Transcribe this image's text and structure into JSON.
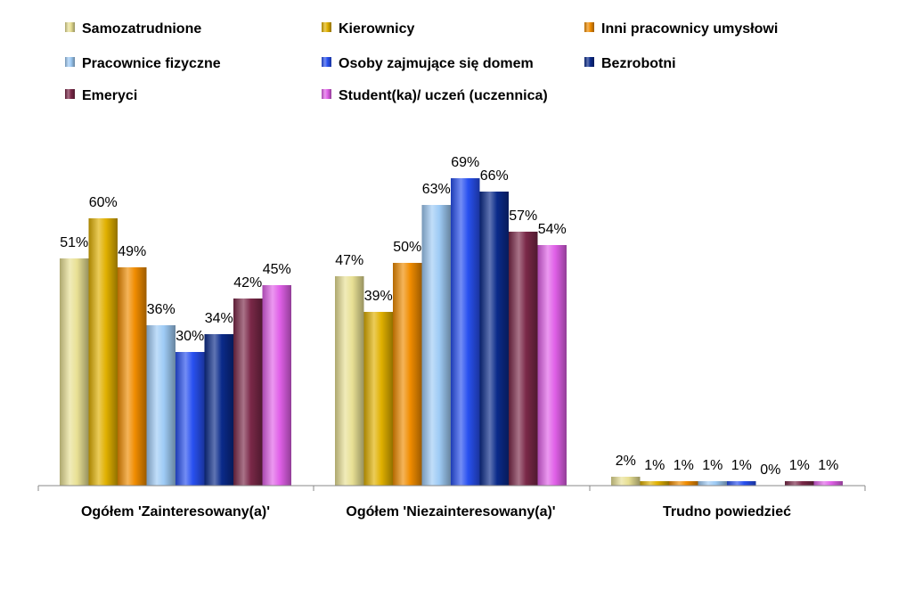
{
  "chart_data": {
    "type": "bar",
    "title": "",
    "xlabel": "",
    "ylabel": "",
    "ylim": [
      0,
      72
    ],
    "grid": false,
    "legend_position": "top",
    "categories": [
      "Ogółem 'Zainteresowany(a)'",
      "Ogółem 'Niezainteresowany(a)'",
      "Trudno powiedzieć"
    ],
    "series": [
      {
        "name": "Samozatrudnione",
        "color": "#E8E094",
        "values": [
          51,
          47,
          2
        ]
      },
      {
        "name": "Kierownicy",
        "color": "#E0B000",
        "values": [
          60,
          39,
          1
        ]
      },
      {
        "name": "Inni pracownicy umysłowi",
        "color": "#F08C00",
        "values": [
          49,
          50,
          1
        ]
      },
      {
        "name": "Pracownice fizyczne",
        "color": "#9ECBF5",
        "values": [
          36,
          63,
          1
        ]
      },
      {
        "name": "Osoby zajmujące się domem",
        "color": "#2850F0",
        "values": [
          30,
          69,
          1
        ]
      },
      {
        "name": "Bezrobotni",
        "color": "#0A2A8A",
        "values": [
          34,
          66,
          0
        ]
      },
      {
        "name": "Emeryci",
        "color": "#7A2848",
        "values": [
          42,
          57,
          1
        ]
      },
      {
        "name": "Student(ka)/ uczeń (uczennica)",
        "color": "#E060E8",
        "values": [
          45,
          54,
          1
        ]
      }
    ],
    "value_suffix": "%"
  }
}
